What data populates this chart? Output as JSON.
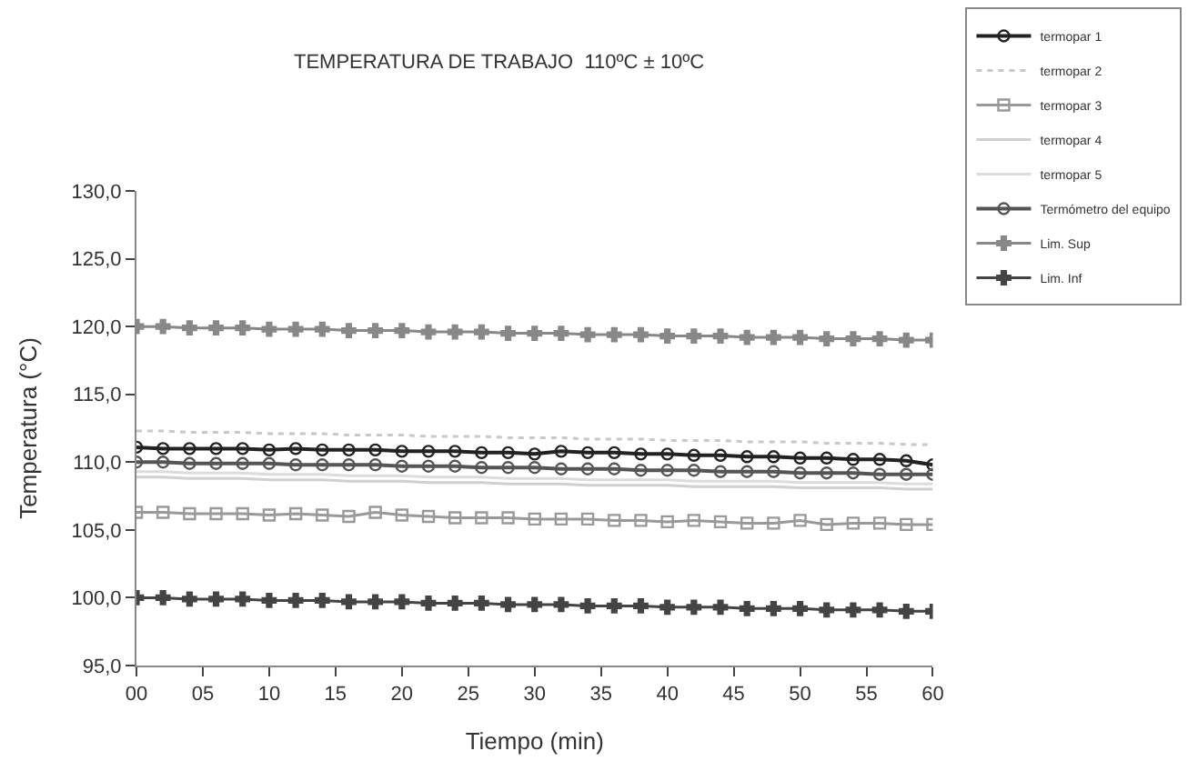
{
  "chart_data": {
    "type": "line",
    "title": "TEMPERATURA DE TRABAJO  110ºC ± 10ºC",
    "xlabel": "Tiempo (min)",
    "ylabel": "Temperatura (°C)",
    "x": [
      0,
      2,
      4,
      6,
      8,
      10,
      12,
      14,
      16,
      18,
      20,
      22,
      24,
      26,
      28,
      30,
      32,
      34,
      36,
      38,
      40,
      42,
      44,
      46,
      48,
      50,
      52,
      54,
      56,
      58,
      60
    ],
    "series": [
      {
        "name": "termopar 1",
        "color": "#222222",
        "marker": "circle",
        "line_style": "solid",
        "values": [
          111.1,
          111.0,
          111.0,
          111.0,
          111.0,
          110.9,
          111.0,
          110.9,
          110.9,
          110.9,
          110.8,
          110.8,
          110.8,
          110.7,
          110.7,
          110.6,
          110.8,
          110.7,
          110.7,
          110.6,
          110.6,
          110.5,
          110.5,
          110.4,
          110.4,
          110.3,
          110.3,
          110.2,
          110.2,
          110.1,
          109.8
        ]
      },
      {
        "name": "termopar 2",
        "color": "#c8c8c8",
        "marker": "none",
        "line_style": "dotted",
        "values": [
          112.3,
          112.3,
          112.2,
          112.2,
          112.2,
          112.1,
          112.1,
          112.1,
          112.0,
          112.0,
          112.0,
          111.9,
          111.9,
          111.9,
          111.8,
          111.8,
          111.8,
          111.7,
          111.7,
          111.7,
          111.6,
          111.6,
          111.6,
          111.5,
          111.5,
          111.5,
          111.4,
          111.4,
          111.4,
          111.3,
          111.3
        ]
      },
      {
        "name": "termopar 3",
        "color": "#999999",
        "marker": "square",
        "line_style": "solid",
        "values": [
          106.3,
          106.3,
          106.2,
          106.2,
          106.2,
          106.1,
          106.2,
          106.1,
          106.0,
          106.3,
          106.1,
          106.0,
          105.9,
          105.9,
          105.9,
          105.8,
          105.8,
          105.8,
          105.7,
          105.7,
          105.6,
          105.7,
          105.6,
          105.5,
          105.5,
          105.7,
          105.4,
          105.5,
          105.5,
          105.4,
          105.4
        ]
      },
      {
        "name": "termopar 4",
        "color": "#d0d0d0",
        "marker": "none",
        "line_style": "solid",
        "values": [
          108.9,
          108.9,
          108.8,
          108.8,
          108.8,
          108.7,
          108.7,
          108.7,
          108.6,
          108.6,
          108.6,
          108.5,
          108.5,
          108.5,
          108.4,
          108.4,
          108.4,
          108.3,
          108.3,
          108.3,
          108.3,
          108.2,
          108.2,
          108.2,
          108.2,
          108.1,
          108.1,
          108.1,
          108.1,
          108.0,
          108.0
        ]
      },
      {
        "name": "termopar 5",
        "color": "#dcdcdc",
        "marker": "none",
        "line_style": "solid",
        "values": [
          109.3,
          109.3,
          109.2,
          109.2,
          109.2,
          109.1,
          109.1,
          109.1,
          109.0,
          109.0,
          109.0,
          108.9,
          108.9,
          108.9,
          108.8,
          108.8,
          108.8,
          108.7,
          108.7,
          108.7,
          108.7,
          108.6,
          108.6,
          108.6,
          108.6,
          108.5,
          108.5,
          108.5,
          108.5,
          108.4,
          108.4
        ]
      },
      {
        "name": "Termómetro del equipo",
        "color": "#555555",
        "marker": "circle",
        "line_style": "solid",
        "values": [
          110.0,
          110.0,
          109.9,
          109.9,
          109.9,
          109.9,
          109.8,
          109.8,
          109.8,
          109.8,
          109.7,
          109.7,
          109.7,
          109.6,
          109.6,
          109.6,
          109.5,
          109.5,
          109.5,
          109.4,
          109.4,
          109.4,
          109.3,
          109.3,
          109.3,
          109.2,
          109.2,
          109.2,
          109.1,
          109.1,
          109.1
        ]
      },
      {
        "name": "Lim. Sup",
        "color": "#888888",
        "marker": "cross",
        "line_style": "solid",
        "values": [
          120.0,
          120.0,
          119.9,
          119.9,
          119.9,
          119.8,
          119.8,
          119.8,
          119.7,
          119.7,
          119.7,
          119.6,
          119.6,
          119.6,
          119.5,
          119.5,
          119.5,
          119.4,
          119.4,
          119.4,
          119.3,
          119.3,
          119.3,
          119.2,
          119.2,
          119.2,
          119.1,
          119.1,
          119.1,
          119.0,
          119.0
        ]
      },
      {
        "name": "Lim. Inf",
        "color": "#444444",
        "marker": "cross",
        "line_style": "solid",
        "values": [
          100.0,
          100.0,
          99.9,
          99.9,
          99.9,
          99.8,
          99.8,
          99.8,
          99.7,
          99.7,
          99.7,
          99.6,
          99.6,
          99.6,
          99.5,
          99.5,
          99.5,
          99.4,
          99.4,
          99.4,
          99.3,
          99.3,
          99.3,
          99.2,
          99.2,
          99.2,
          99.1,
          99.1,
          99.1,
          99.0,
          99.0
        ]
      }
    ],
    "xlim": [
      0,
      60
    ],
    "xticks": [
      {
        "value": 0,
        "label": "00"
      },
      {
        "value": 5,
        "label": "05"
      },
      10,
      15,
      20,
      25,
      30,
      35,
      40,
      45,
      50,
      55,
      60
    ],
    "ylim": [
      95,
      130
    ],
    "yticks": [
      {
        "value": 95,
        "label": "95,0"
      },
      {
        "value": 100,
        "label": "100,0"
      },
      {
        "value": 105,
        "label": "105,0"
      },
      {
        "value": 110,
        "label": "110,0"
      },
      {
        "value": 115,
        "label": "115,0"
      },
      {
        "value": 120,
        "label": "120,0"
      },
      {
        "value": 125,
        "label": "125,0"
      },
      {
        "value": 130,
        "label": "130,0"
      }
    ],
    "grid": false,
    "legend": "top right"
  }
}
